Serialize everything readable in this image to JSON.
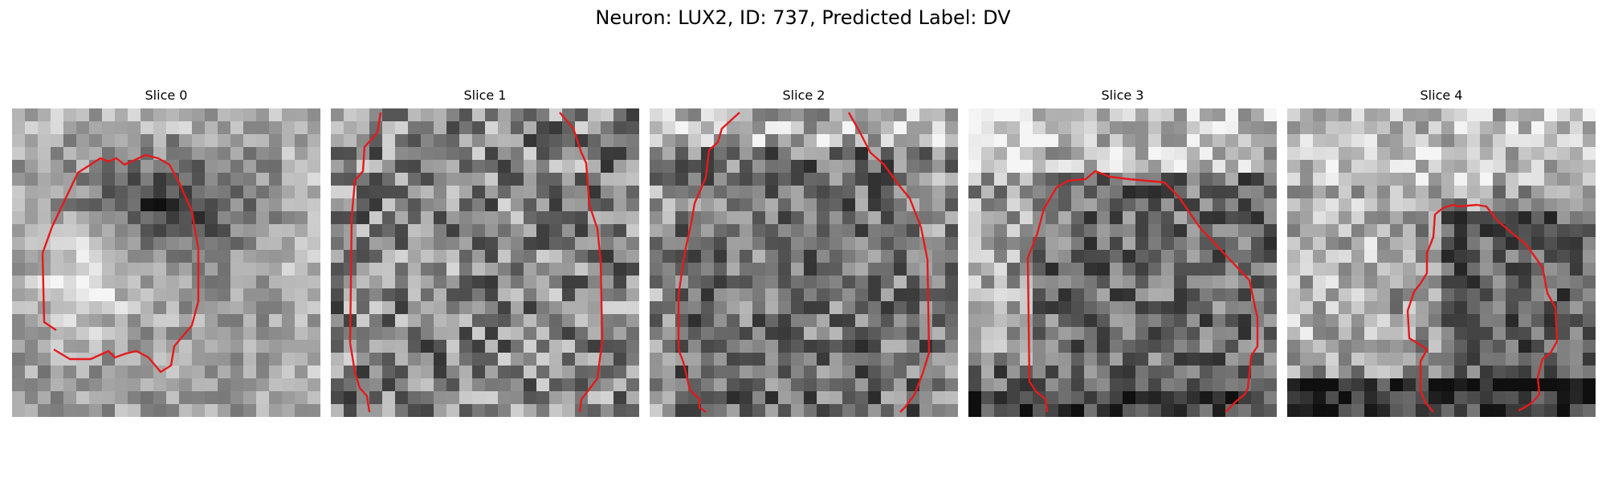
{
  "figure": {
    "title": "Neuron: LUX2, ID: 737, Predicted Label: DV"
  },
  "panels": [
    {
      "title": "Slice 0"
    },
    {
      "title": "Slice 1"
    },
    {
      "title": "Slice 2"
    },
    {
      "title": "Slice 3"
    },
    {
      "title": "Slice 4"
    }
  ],
  "colors": {
    "contour": "#e41a1c",
    "pixel_dark": "#141414",
    "pixel_light": "#f2f2f2"
  }
}
